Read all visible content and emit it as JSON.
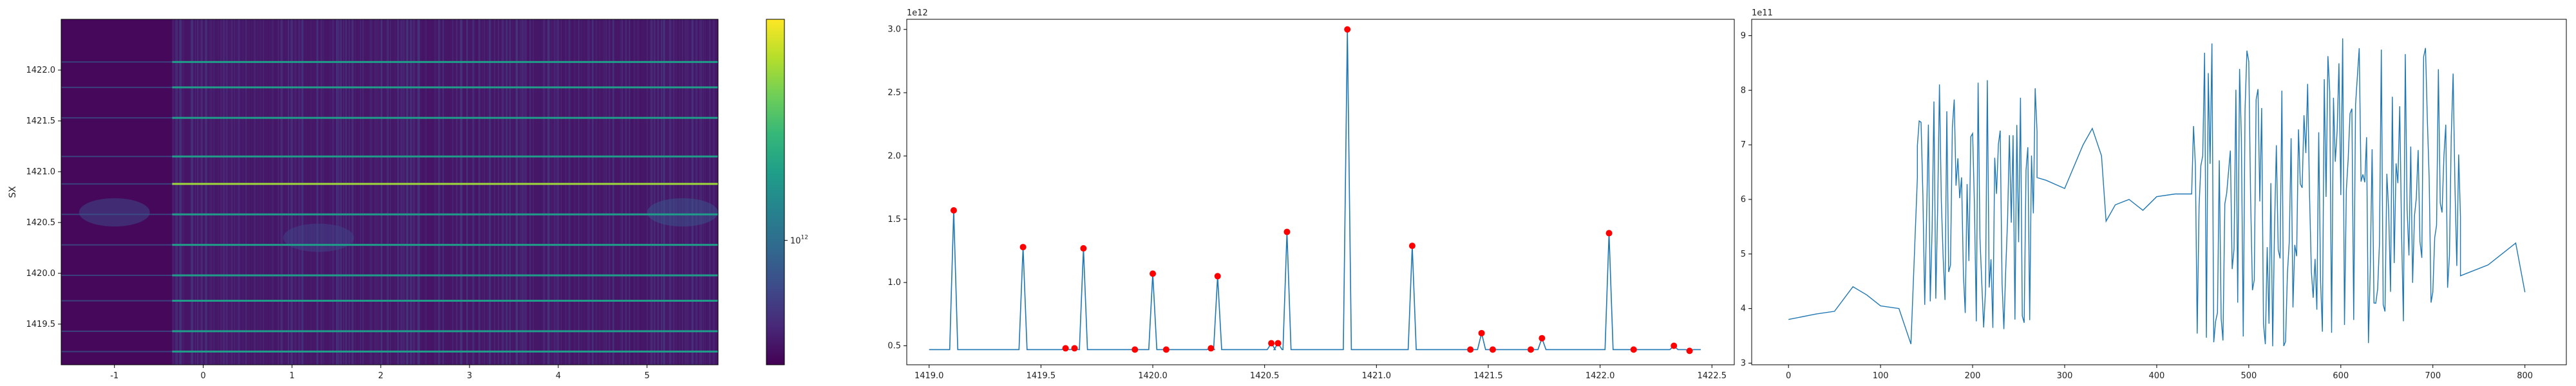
{
  "chart_data": [
    {
      "type": "heatmap",
      "ylabel": "SX",
      "xlim": [
        -1.6,
        5.8
      ],
      "ylim": [
        1419.1,
        1422.5
      ],
      "xticks": [
        "-1",
        "0",
        "1",
        "2",
        "3",
        "4",
        "5"
      ],
      "xtick_values": [
        -1,
        0,
        1,
        2,
        3,
        4,
        5
      ],
      "yticks": [
        "1419.5",
        "1420.0",
        "1420.5",
        "1421.0",
        "1421.5",
        "1422.0"
      ],
      "ytick_values": [
        1419.5,
        1420.0,
        1420.5,
        1421.0,
        1421.5,
        1422.0
      ],
      "bright_rows": [
        1419.23,
        1419.43,
        1419.73,
        1419.98,
        1420.28,
        1420.58,
        1420.88,
        1421.15,
        1421.53,
        1421.83,
        1422.08
      ],
      "strongest_row": 1420.88,
      "dark_region_x": [
        -1.6,
        -0.35
      ],
      "colormap": "viridis",
      "colorbar": {
        "label": "10^12",
        "scale": "log"
      }
    },
    {
      "type": "line",
      "scale_label": "1e12",
      "xlim": [
        1418.9,
        1422.6
      ],
      "ylim": [
        0.35,
        3.08
      ],
      "xticks": [
        "1419.0",
        "1419.5",
        "1420.0",
        "1420.5",
        "1421.0",
        "1421.5",
        "1422.0",
        "1422.5"
      ],
      "xtick_values": [
        1419.0,
        1419.5,
        1420.0,
        1420.5,
        1421.0,
        1421.5,
        1422.0,
        1422.5
      ],
      "yticks": [
        "0.5",
        "1.0",
        "1.5",
        "2.0",
        "2.5",
        "3.0"
      ],
      "ytick_values": [
        0.5,
        1.0,
        1.5,
        2.0,
        2.5,
        3.0
      ],
      "baseline": 0.47,
      "peaks": [
        {
          "x": 1419.11,
          "y": 1.57
        },
        {
          "x": 1419.42,
          "y": 1.28
        },
        {
          "x": 1419.61,
          "y": 0.48
        },
        {
          "x": 1419.65,
          "y": 0.48
        },
        {
          "x": 1419.69,
          "y": 1.27
        },
        {
          "x": 1419.92,
          "y": 0.47
        },
        {
          "x": 1420.0,
          "y": 1.07
        },
        {
          "x": 1420.06,
          "y": 0.47
        },
        {
          "x": 1420.26,
          "y": 0.48
        },
        {
          "x": 1420.29,
          "y": 1.05
        },
        {
          "x": 1420.53,
          "y": 0.52
        },
        {
          "x": 1420.56,
          "y": 0.52
        },
        {
          "x": 1420.6,
          "y": 1.4
        },
        {
          "x": 1420.87,
          "y": 3.0
        },
        {
          "x": 1421.16,
          "y": 1.29
        },
        {
          "x": 1421.42,
          "y": 0.47
        },
        {
          "x": 1421.47,
          "y": 0.6
        },
        {
          "x": 1421.52,
          "y": 0.47
        },
        {
          "x": 1421.69,
          "y": 0.47
        },
        {
          "x": 1421.74,
          "y": 0.56
        },
        {
          "x": 1422.04,
          "y": 1.39
        },
        {
          "x": 1422.15,
          "y": 0.47
        },
        {
          "x": 1422.33,
          "y": 0.5
        },
        {
          "x": 1422.4,
          "y": 0.46
        }
      ],
      "line_color": "#1f77b4",
      "marker_color": "#ff0000"
    },
    {
      "type": "line",
      "scale_label": "1e11",
      "xlim": [
        -40,
        845
      ],
      "ylim": [
        2.97,
        9.3
      ],
      "xticks": [
        "0",
        "100",
        "200",
        "300",
        "400",
        "500",
        "600",
        "700",
        "800"
      ],
      "xtick_values": [
        0,
        100,
        200,
        300,
        400,
        500,
        600,
        700,
        800
      ],
      "yticks": [
        "3",
        "4",
        "5",
        "6",
        "7",
        "8",
        "9"
      ],
      "ytick_values": [
        3,
        4,
        5,
        6,
        7,
        8,
        9
      ],
      "segments": [
        {
          "x": [
            0,
            30,
            50,
            70,
            85,
            100,
            120,
            133
          ],
          "y": [
            3.8,
            3.9,
            3.95,
            4.4,
            4.25,
            4.05,
            4.0,
            3.35
          ]
        },
        {
          "x": [
            133,
            140
          ],
          "y": [
            3.35,
            6.4
          ]
        },
        {
          "x": [
            140,
            270
          ],
          "y_range": [
            3.6,
            8.2
          ],
          "pattern": "noisy"
        },
        {
          "x": [
            270,
            280,
            300,
            320,
            330,
            340,
            345,
            355,
            370,
            385,
            400,
            420,
            438
          ],
          "y": [
            6.4,
            6.35,
            6.2,
            7.0,
            7.3,
            6.8,
            5.6,
            5.9,
            6.0,
            5.8,
            6.05,
            6.1,
            6.1
          ]
        },
        {
          "x": [
            440,
            730
          ],
          "y_range": [
            3.3,
            9.05
          ],
          "pattern": "noisy"
        },
        {
          "x": [
            730,
            760,
            790,
            800
          ],
          "y": [
            4.6,
            4.8,
            5.2,
            4.3
          ]
        }
      ],
      "line_color": "#1f77b4"
    }
  ]
}
